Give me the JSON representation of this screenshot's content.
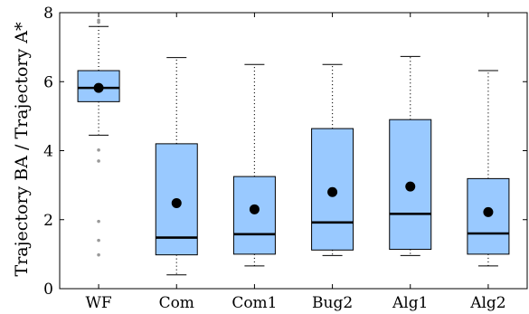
{
  "chart_data": {
    "type": "boxplot",
    "ylabel": "Trajectory BA / Trajectory A*",
    "ylim": [
      0,
      8
    ],
    "yticks": [
      "0",
      "2",
      "4",
      "6",
      "8"
    ],
    "grid": false,
    "box_color": "#99c9ff",
    "categories": [
      "WF",
      "Com",
      "Com1",
      "Bug2",
      "Alg1",
      "Alg2"
    ],
    "boxes": [
      {
        "label": "WF",
        "whisker_low": 4.45,
        "q1": 5.42,
        "median": 5.82,
        "q3": 6.32,
        "whisker_high": 7.6,
        "mean": 5.82,
        "outliers": [
          0.98,
          1.4,
          1.95,
          3.7,
          4.02,
          7.72,
          7.78
        ]
      },
      {
        "label": "Com",
        "whisker_low": 0.4,
        "q1": 0.98,
        "median": 1.48,
        "q3": 4.2,
        "whisker_high": 6.7,
        "mean": 2.48,
        "outliers": []
      },
      {
        "label": "Com1",
        "whisker_low": 0.66,
        "q1": 1.0,
        "median": 1.58,
        "q3": 3.25,
        "whisker_high": 6.5,
        "mean": 2.3,
        "outliers": []
      },
      {
        "label": "Bug2",
        "whisker_low": 0.96,
        "q1": 1.12,
        "median": 1.92,
        "q3": 4.64,
        "whisker_high": 6.5,
        "mean": 2.8,
        "outliers": []
      },
      {
        "label": "Alg1",
        "whisker_low": 0.96,
        "q1": 1.14,
        "median": 2.17,
        "q3": 4.9,
        "whisker_high": 6.73,
        "mean": 2.96,
        "outliers": []
      },
      {
        "label": "Alg2",
        "whisker_low": 0.66,
        "q1": 1.0,
        "median": 1.6,
        "q3": 3.19,
        "whisker_high": 6.32,
        "mean": 2.22,
        "outliers": []
      }
    ]
  }
}
